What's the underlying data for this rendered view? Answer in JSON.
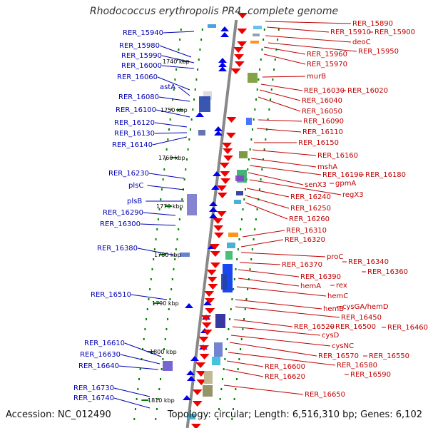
{
  "header": {
    "title": "Rhodococcus erythropolis PR4, complete genome"
  },
  "footer": {
    "accession": "Accession: NC_012490",
    "summary": "Topology: circular; Length: 6,516,310 bp; Genes: 6,102"
  },
  "colors": {
    "reverse_strand": "#0000ee",
    "forward_strand": "#ee0000",
    "backbone": "#888888",
    "ticks": "#008000",
    "left_label": "#0000b0",
    "right_label": "#c00000"
  },
  "scale_labels": [
    "1740 kbp",
    "1750 kbp",
    "1760 kbp",
    "1770 kbp",
    "1780 kbp",
    "1790 kbp",
    "1800 kbp",
    "1810 kbp"
  ],
  "left_genes": [
    "RER_15940",
    "RER_15980",
    "RER_15990",
    "RER_16000",
    "RER_16060",
    "astA",
    "RER_16080",
    "RER_16100",
    "RER_16120",
    "RER_16130",
    "RER_16140",
    "RER_16230",
    "plsC",
    "plsB",
    "RER_16290",
    "RER_16300",
    "RER_16380",
    "RER_16510",
    "RER_16610",
    "RER_16630",
    "RER_16640",
    "RER_16730",
    "RER_16740"
  ],
  "right_genes": [
    "RER_15890",
    "RER_15910",
    "RER_15900",
    "deoC",
    "RER_15950",
    "RER_15960",
    "RER_15970",
    "murB",
    "RER_16030",
    "RER_16020",
    "RER_16040",
    "RER_16050",
    "RER_16090",
    "RER_16110",
    "RER_16150",
    "RER_16160",
    "mshA",
    "RER_16190",
    "RER_16180",
    "senX3",
    "gpmA",
    "regX3",
    "RER_16240",
    "RER_16250",
    "RER_16260",
    "RER_16310",
    "RER_16320",
    "proC",
    "RER_16340",
    "RER_16370",
    "RER_16360",
    "RER_16390",
    "hemA",
    "rex",
    "hemC",
    "hemB",
    "cysGA/hemD",
    "RER_16450",
    "RER_16520",
    "RER_16500",
    "RER_16460",
    "cysD",
    "cysNC",
    "RER_16570",
    "RER_16550",
    "RER_16580",
    "RER_16600",
    "RER_16590",
    "RER_16620",
    "RER_16650"
  ]
}
